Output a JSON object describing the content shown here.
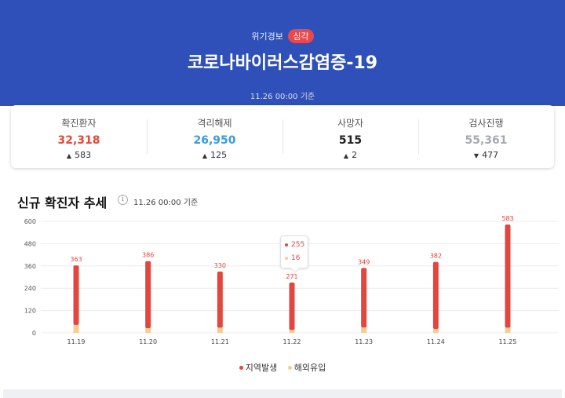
{
  "header": {
    "alert_label": "위기경보",
    "alert_level": "심각",
    "title": "코로나바이러스감염증-19",
    "as_of": "11.26 00:00 기준"
  },
  "stats": [
    {
      "label": "확진환자",
      "value": "32,318",
      "delta": "583",
      "direction": "up",
      "color": "#e24a3d"
    },
    {
      "label": "격리해제",
      "value": "26,950",
      "delta": "125",
      "direction": "up",
      "color": "#3c9ae0"
    },
    {
      "label": "사망자",
      "value": "515",
      "delta": "2",
      "direction": "up",
      "color": "#222222"
    },
    {
      "label": "검사진행",
      "value": "55,361",
      "delta": "477",
      "direction": "down",
      "color": "#a7aab1"
    }
  ],
  "section": {
    "title": "신규 확진자 추세",
    "as_of": "11.26 00:00 기준",
    "info_icon": "info-icon"
  },
  "tooltip": {
    "local": "255",
    "imported": "16"
  },
  "legend": {
    "local": "지역발생",
    "imported": "해외유입"
  },
  "colors": {
    "local": "#e2463e",
    "imported": "#f5cd94",
    "banner": "#2e50b8"
  },
  "chart_data": {
    "type": "bar",
    "stacked": true,
    "categories": [
      "11.19",
      "11.20",
      "11.21",
      "11.22",
      "11.23",
      "11.24",
      "11.25"
    ],
    "series": [
      {
        "name": "지역발생",
        "values": [
          320,
          361,
          302,
          255,
          320,
          361,
          555
        ]
      },
      {
        "name": "해외유입",
        "values": [
          43,
          25,
          28,
          16,
          29,
          21,
          28
        ]
      }
    ],
    "totals": [
      "363",
      "386",
      "330",
      "271",
      "349",
      "382",
      "583"
    ],
    "yticks": [
      "0",
      "120",
      "240",
      "360",
      "480",
      "600"
    ],
    "ylim": [
      0,
      600
    ],
    "grid": true,
    "legend_position": "bottom"
  }
}
